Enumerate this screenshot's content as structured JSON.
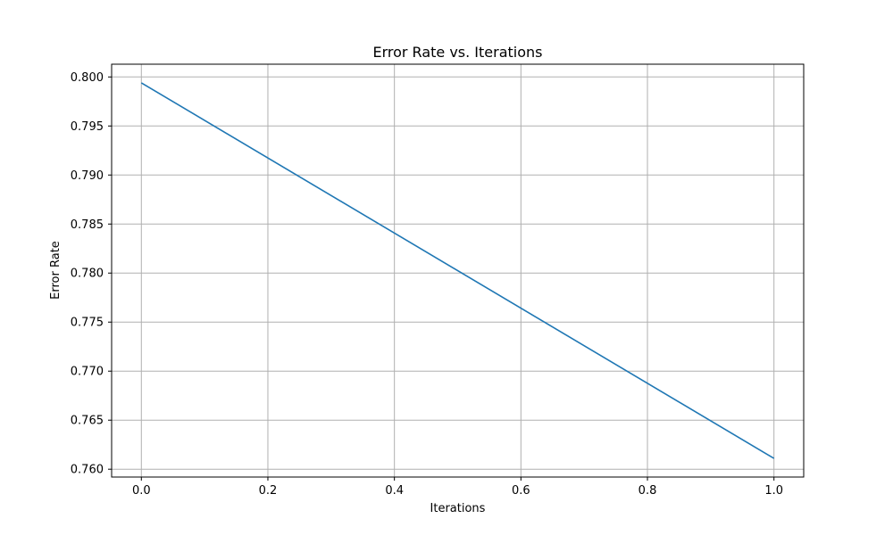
{
  "chart_data": {
    "type": "line",
    "title": "Error Rate vs. Iterations",
    "xlabel": "Iterations",
    "ylabel": "Error Rate",
    "xlim": [
      -0.047,
      1.047
    ],
    "ylim": [
      0.7592,
      0.8013
    ],
    "xticks": [
      0.0,
      0.2,
      0.4,
      0.6,
      0.8,
      1.0
    ],
    "xtick_labels": [
      "0.0",
      "0.2",
      "0.4",
      "0.6",
      "0.8",
      "1.0"
    ],
    "yticks": [
      0.76,
      0.765,
      0.77,
      0.775,
      0.78,
      0.785,
      0.79,
      0.795,
      0.8
    ],
    "ytick_labels": [
      "0.760",
      "0.765",
      "0.770",
      "0.775",
      "0.780",
      "0.785",
      "0.790",
      "0.795",
      "0.800"
    ],
    "grid": true,
    "series": [
      {
        "color": "#1f77b4",
        "x": [
          0.0,
          1.0
        ],
        "y": [
          0.7994,
          0.7611
        ]
      }
    ]
  }
}
